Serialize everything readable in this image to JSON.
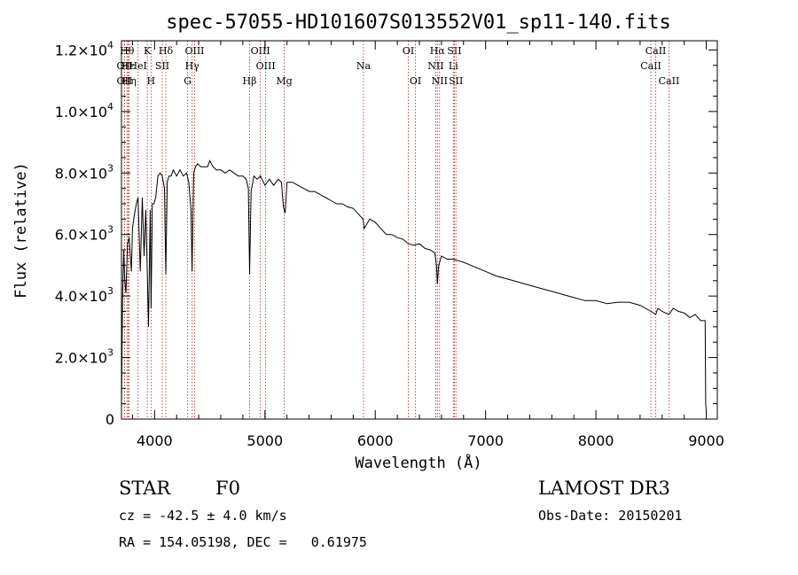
{
  "chart_data": {
    "type": "line",
    "title": "spec-57055-HD101607S013552V01_sp11-140.fits",
    "xlabel": "Wavelength (Å)",
    "ylabel": "Flux (relative)",
    "xlim": [
      3700,
      9100
    ],
    "ylim": [
      0,
      12300
    ],
    "xticks": [
      {
        "value": 4000,
        "label": "4000"
      },
      {
        "value": 5000,
        "label": "5000"
      },
      {
        "value": 6000,
        "label": "6000"
      },
      {
        "value": 7000,
        "label": "7000"
      },
      {
        "value": 8000,
        "label": "8000"
      },
      {
        "value": 9000,
        "label": "9000"
      }
    ],
    "yticks": [
      {
        "value": 0,
        "mant": "0",
        "exp": ""
      },
      {
        "value": 2000,
        "mant": "2.0×10",
        "exp": "3"
      },
      {
        "value": 4000,
        "mant": "4.0×10",
        "exp": "3"
      },
      {
        "value": 6000,
        "mant": "6.0×10",
        "exp": "3"
      },
      {
        "value": 8000,
        "mant": "8.0×10",
        "exp": "3"
      },
      {
        "value": 10000,
        "mant": "1.0×10",
        "exp": "4"
      },
      {
        "value": 12000,
        "mant": "1.2×10",
        "exp": "4"
      }
    ],
    "series": [
      {
        "name": "spectrum",
        "x": [
          3700,
          3710,
          3720,
          3730,
          3740,
          3755,
          3770,
          3790,
          3800,
          3815,
          3835,
          3850,
          3870,
          3889,
          3905,
          3920,
          3934,
          3945,
          3960,
          3968,
          3980,
          3995,
          4010,
          4030,
          4050,
          4070,
          4090,
          4102,
          4115,
          4130,
          4150,
          4170,
          4200,
          4230,
          4260,
          4290,
          4310,
          4330,
          4340,
          4355,
          4370,
          4390,
          4420,
          4450,
          4480,
          4500,
          4530,
          4560,
          4600,
          4640,
          4680,
          4720,
          4760,
          4800,
          4830,
          4850,
          4861,
          4875,
          4900,
          4930,
          4960,
          5000,
          5040,
          5080,
          5120,
          5150,
          5167,
          5183,
          5200,
          5250,
          5300,
          5350,
          5400,
          5450,
          5500,
          5550,
          5600,
          5650,
          5700,
          5750,
          5800,
          5850,
          5890,
          5900,
          5950,
          6000,
          6050,
          6100,
          6150,
          6200,
          6250,
          6300,
          6350,
          6400,
          6450,
          6500,
          6540,
          6555,
          6563,
          6575,
          6600,
          6650,
          6700,
          6750,
          6800,
          6900,
          7000,
          7100,
          7200,
          7300,
          7400,
          7500,
          7600,
          7700,
          7800,
          7900,
          8000,
          8100,
          8200,
          8300,
          8400,
          8500,
          8542,
          8560,
          8600,
          8662,
          8700,
          8750,
          8800,
          8850,
          8900,
          8950,
          8990,
          8995,
          9000
        ],
        "y": [
          300,
          3900,
          5500,
          4500,
          4100,
          5700,
          5900,
          4800,
          6200,
          6600,
          7000,
          7200,
          4800,
          7200,
          5300,
          6800,
          4800,
          3000,
          6800,
          3600,
          7000,
          7000,
          7200,
          7900,
          8000,
          7900,
          7500,
          4700,
          7700,
          7900,
          7900,
          8100,
          7900,
          8100,
          7900,
          8000,
          7700,
          6800,
          4800,
          8000,
          8200,
          8300,
          8200,
          8200,
          8200,
          8400,
          8200,
          8100,
          8100,
          8000,
          8100,
          8000,
          7900,
          7900,
          7800,
          7500,
          4700,
          7400,
          7900,
          7800,
          7900,
          7600,
          7800,
          7600,
          7800,
          7700,
          6900,
          6700,
          7700,
          7700,
          7600,
          7500,
          7400,
          7400,
          7300,
          7200,
          7100,
          7000,
          7000,
          6900,
          6850,
          6650,
          6500,
          6200,
          6500,
          6400,
          6200,
          6000,
          6000,
          5900,
          5850,
          5700,
          5650,
          5700,
          5550,
          5500,
          5400,
          5000,
          4400,
          5000,
          5300,
          5200,
          5200,
          5150,
          5100,
          4950,
          4800,
          4650,
          4550,
          4450,
          4350,
          4250,
          4150,
          4050,
          3950,
          3850,
          3850,
          3750,
          3800,
          3800,
          3700,
          3500,
          3400,
          3600,
          3500,
          3400,
          3600,
          3500,
          3450,
          3300,
          3400,
          3200,
          3200,
          500,
          200
        ]
      }
    ],
    "line_marks": [
      {
        "x": 3727,
        "label": "OII",
        "row": 1
      },
      {
        "x": 3727,
        "label": "OII",
        "row": 2
      },
      {
        "x": 3750,
        "label": "Hθ",
        "row": 0
      },
      {
        "x": 3760,
        "label": "Hε",
        "row": 1
      },
      {
        "x": 3770,
        "label": "Hη",
        "row": 2
      },
      {
        "x": 3850,
        "label": "HeI",
        "row": 1
      },
      {
        "x": 3934,
        "label": "K",
        "row": 0
      },
      {
        "x": 3968,
        "label": "H",
        "row": 2
      },
      {
        "x": 4070,
        "label": "SII",
        "row": 1
      },
      {
        "x": 4102,
        "label": "Hδ",
        "row": 0
      },
      {
        "x": 4300,
        "label": "G",
        "row": 2
      },
      {
        "x": 4341,
        "label": "Hγ",
        "row": 1
      },
      {
        "x": 4363,
        "label": "OIII",
        "row": 0
      },
      {
        "x": 4861,
        "label": "Hβ",
        "row": 2
      },
      {
        "x": 4959,
        "label": "OIII",
        "row": 0
      },
      {
        "x": 5007,
        "label": "OIII",
        "row": 1
      },
      {
        "x": 5175,
        "label": "Mg",
        "row": 2
      },
      {
        "x": 5893,
        "label": "Na",
        "row": 1
      },
      {
        "x": 6300,
        "label": "OI",
        "row": 0
      },
      {
        "x": 6364,
        "label": "OI",
        "row": 2
      },
      {
        "x": 6548,
        "label": "NII",
        "row": 1
      },
      {
        "x": 6563,
        "label": "Hα",
        "row": 0
      },
      {
        "x": 6583,
        "label": "NII",
        "row": 2
      },
      {
        "x": 6708,
        "label": "Li",
        "row": 1
      },
      {
        "x": 6717,
        "label": "SII",
        "row": 0
      },
      {
        "x": 6731,
        "label": "SII",
        "row": 2
      },
      {
        "x": 8498,
        "label": "CaII",
        "row": 1
      },
      {
        "x": 8542,
        "label": "CaII",
        "row": 0
      },
      {
        "x": 8662,
        "label": "CaII",
        "row": 2
      }
    ]
  },
  "info": {
    "object_class": "STAR",
    "subclass": "F0",
    "survey": "LAMOST DR3",
    "velocity": "cz = -42.5 ± 4.0 km/s",
    "obs_date": "Obs-Date: 20150201",
    "coords": "RA = 154.05198, DEC =   0.61975"
  },
  "colors": {
    "spectrum": "#000000",
    "line_marks": "#b22222",
    "axes": "#000000"
  }
}
